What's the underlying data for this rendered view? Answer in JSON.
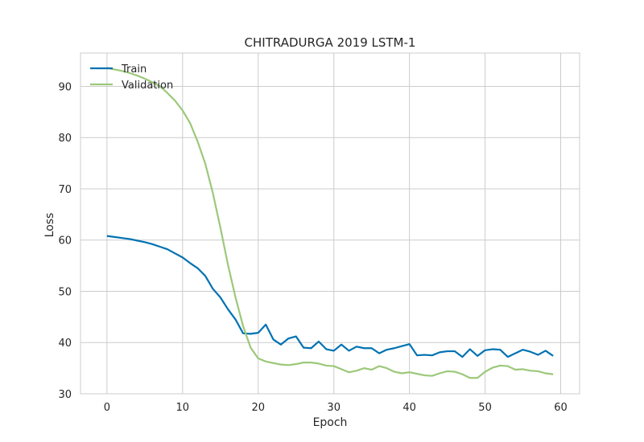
{
  "chart_data": {
    "type": "line",
    "title": "CHITRADURGA 2019 LSTM-1",
    "xlabel": "Epoch",
    "ylabel": "Loss",
    "xlim": [
      -3.5,
      62.5
    ],
    "ylim": [
      30,
      96.5
    ],
    "xticks": [
      0,
      10,
      20,
      30,
      40,
      50,
      60
    ],
    "yticks": [
      30,
      40,
      50,
      60,
      70,
      80,
      90
    ],
    "grid": true,
    "legend_position": "top-left",
    "x": [
      0,
      1,
      2,
      3,
      4,
      5,
      6,
      7,
      8,
      9,
      10,
      11,
      12,
      13,
      14,
      15,
      16,
      17,
      18,
      19,
      20,
      21,
      22,
      23,
      24,
      25,
      26,
      27,
      28,
      29,
      30,
      31,
      32,
      33,
      34,
      35,
      36,
      37,
      38,
      39,
      40,
      41,
      42,
      43,
      44,
      45,
      46,
      47,
      48,
      49,
      50,
      51,
      52,
      53,
      54,
      55,
      56,
      57,
      58,
      59
    ],
    "series": [
      {
        "name": "Train",
        "color": "#0072B2",
        "values": [
          60.8,
          60.6,
          60.4,
          60.2,
          59.9,
          59.6,
          59.2,
          58.7,
          58.2,
          57.4,
          56.6,
          55.5,
          54.5,
          53.0,
          50.5,
          48.8,
          46.5,
          44.5,
          41.8,
          41.7,
          41.9,
          43.5,
          40.6,
          39.6,
          40.8,
          41.2,
          39.0,
          38.9,
          40.2,
          38.7,
          38.4,
          39.6,
          38.4,
          39.2,
          38.9,
          38.9,
          37.9,
          38.6,
          38.9,
          39.3,
          39.7,
          37.5,
          37.6,
          37.5,
          38.1,
          38.3,
          38.3,
          37.2,
          38.7,
          37.4,
          38.5,
          38.7,
          38.6,
          37.2,
          37.9,
          38.6,
          38.2,
          37.6,
          38.4,
          37.4
        ]
      },
      {
        "name": "Validation",
        "color": "#9CC87A",
        "values": [
          93.6,
          93.3,
          93.0,
          92.6,
          92.1,
          91.5,
          90.8,
          90.0,
          88.7,
          87.2,
          85.3,
          82.8,
          79.2,
          74.9,
          69.2,
          62.4,
          55.2,
          48.8,
          43.2,
          39.0,
          36.9,
          36.3,
          36.0,
          35.7,
          35.6,
          35.8,
          36.1,
          36.1,
          35.9,
          35.5,
          35.4,
          34.8,
          34.2,
          34.5,
          35.0,
          34.7,
          35.4,
          35.0,
          34.3,
          34.0,
          34.2,
          33.9,
          33.6,
          33.5,
          34.0,
          34.4,
          34.3,
          33.8,
          33.1,
          33.1,
          34.3,
          35.1,
          35.5,
          35.4,
          34.7,
          34.8,
          34.5,
          34.4,
          34.0,
          33.8
        ]
      }
    ]
  }
}
